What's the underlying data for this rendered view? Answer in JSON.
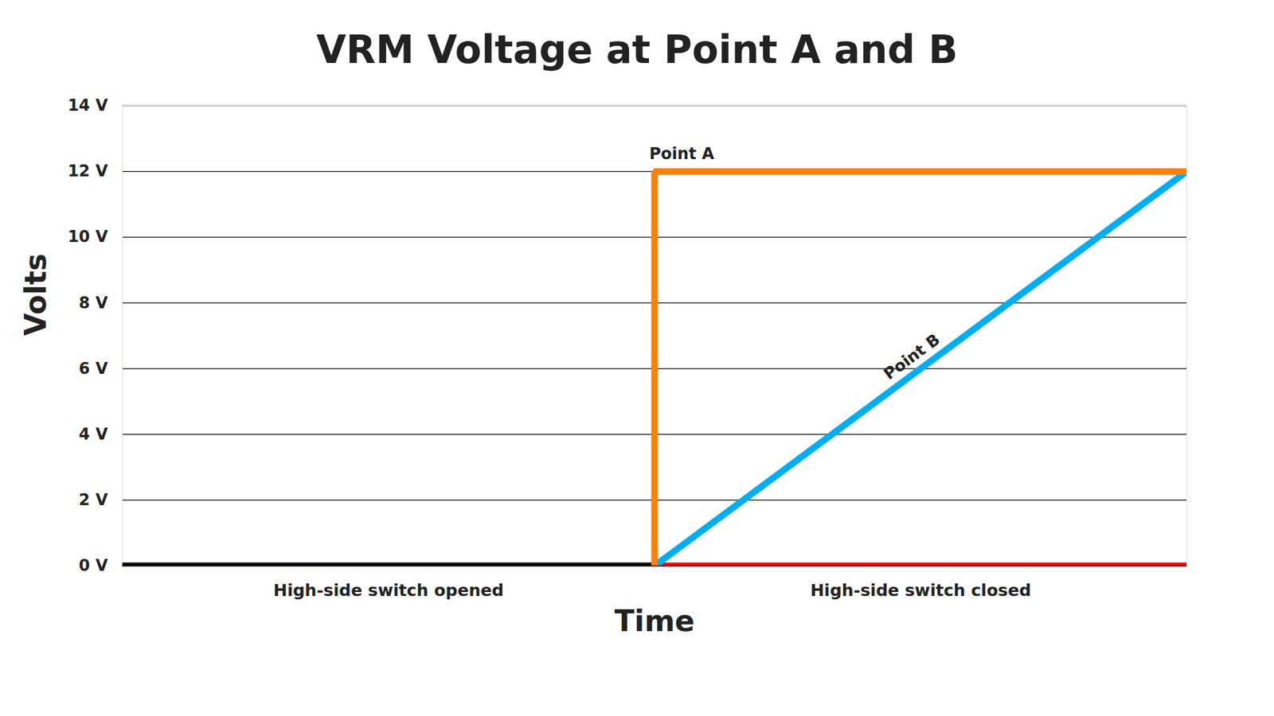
{
  "chart_data": {
    "type": "line",
    "title": "VRM Voltage at Point A and B",
    "x_label": "Time",
    "y_label": "Volts",
    "xlim": [
      0,
      2
    ],
    "xticks": [
      {
        "value": 0.5,
        "label": "High-side switch opened"
      },
      {
        "value": 1.5,
        "label": "High-side switch closed"
      }
    ],
    "ylim": [
      0,
      14
    ],
    "yticks": [
      {
        "value": 0,
        "label": "0 V"
      },
      {
        "value": 2,
        "label": "2 V"
      },
      {
        "value": 4,
        "label": "4 V"
      },
      {
        "value": 6,
        "label": "6 V"
      },
      {
        "value": 8,
        "label": "8 V"
      },
      {
        "value": 10,
        "label": "10 V"
      },
      {
        "value": 12,
        "label": "12 V"
      },
      {
        "value": 14,
        "label": "14 V"
      }
    ],
    "grid": true,
    "series": [
      {
        "color": "#000000",
        "x": [
          0,
          1
        ],
        "values": [
          0,
          0
        ]
      },
      {
        "color": "#ff0000",
        "x": [
          1,
          2
        ],
        "values": [
          0,
          0
        ]
      },
      {
        "name": "Point B",
        "color": "#00aeef",
        "x": [
          1,
          2
        ],
        "values": [
          0,
          12
        ]
      },
      {
        "name": "Point A",
        "color": "#f5820d",
        "x": [
          1,
          1,
          2
        ],
        "values": [
          0,
          12,
          12
        ]
      }
    ]
  }
}
